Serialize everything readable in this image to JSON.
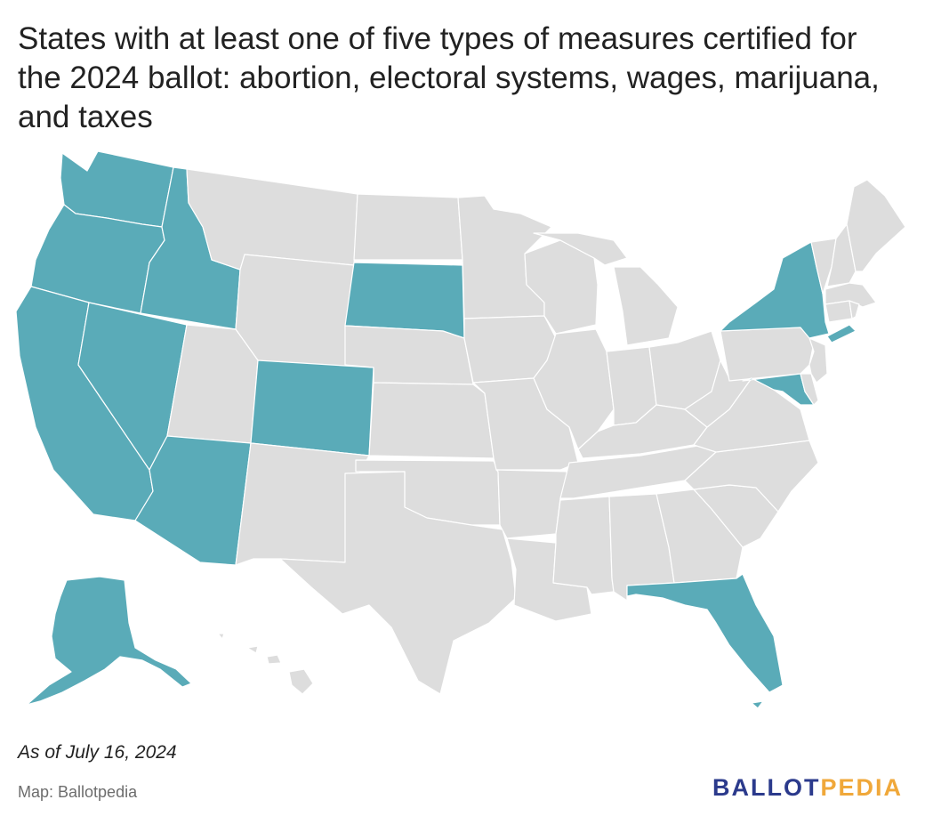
{
  "title": "States with at least one of five types of measures certified for the 2024 ballot: abortion, electoral systems, wages, marijuana, and taxes",
  "note": "As of July 16, 2024",
  "source": "Map: Ballotpedia",
  "logo": {
    "part1": "BALLOT",
    "part2": "PEDIA"
  },
  "colors": {
    "highlight": "#5aabb8",
    "other": "#dddddd",
    "border": "#ffffff",
    "logo_primary": "#2b3a8c",
    "logo_accent": "#f0a83a"
  },
  "highlighted_states": [
    "Washington",
    "Oregon",
    "California",
    "Nevada",
    "Idaho",
    "Arizona",
    "Colorado",
    "South Dakota",
    "New York",
    "Maryland",
    "Florida",
    "Alaska"
  ]
}
